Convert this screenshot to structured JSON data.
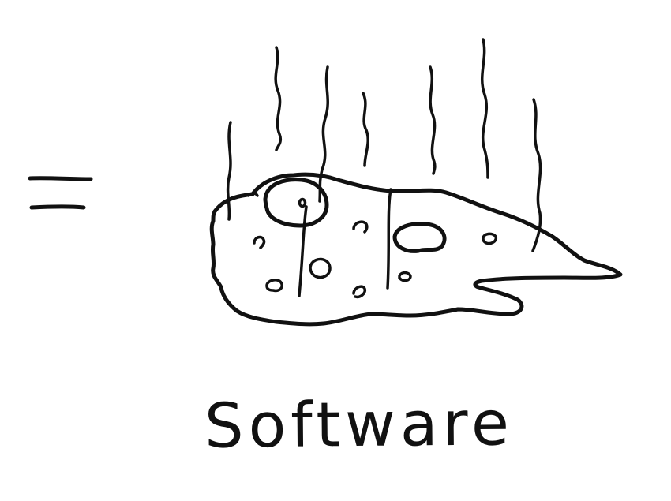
{
  "caption": {
    "text": "Software"
  },
  "icons": {
    "equals": "equals-sign-icon",
    "steam": "stink-lines-icon",
    "blob": "rotten-blob-icon"
  },
  "colors": {
    "ink": "#111111",
    "paper": "#ffffff"
  }
}
